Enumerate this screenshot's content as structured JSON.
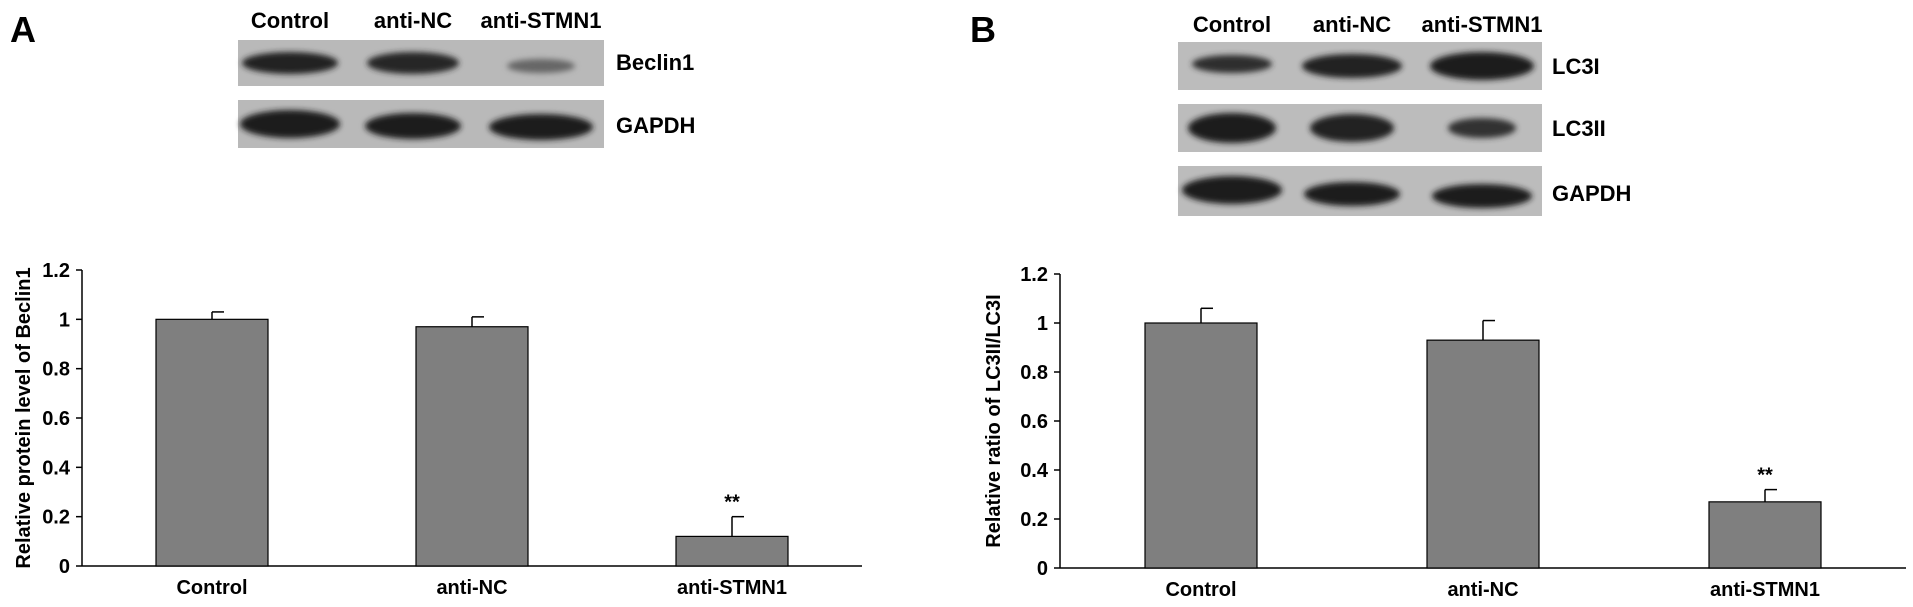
{
  "figure": {
    "panels": [
      {
        "letter": "A",
        "blot": {
          "lanes": [
            "Control",
            "anti-NC",
            "anti-STMN1"
          ],
          "bands": [
            {
              "name": "Beclin1",
              "intensity": [
                1.0,
                0.95,
                0.45
              ]
            },
            {
              "name": "GAPDH",
              "intensity": [
                1.0,
                1.0,
                1.0
              ]
            }
          ]
        }
      },
      {
        "letter": "B",
        "blot": {
          "lanes": [
            "Control",
            "anti-NC",
            "anti-STMN1"
          ],
          "bands": [
            {
              "name": "LC3I",
              "intensity": [
                0.8,
                1.0,
                1.05
              ]
            },
            {
              "name": "LC3II",
              "intensity": [
                1.0,
                1.0,
                0.65
              ]
            },
            {
              "name": "GAPDH",
              "intensity": [
                1.0,
                1.0,
                1.0
              ]
            }
          ]
        }
      }
    ]
  },
  "chart_data": [
    {
      "type": "bar",
      "categories": [
        "Control",
        "anti-NC",
        "anti-STMN1"
      ],
      "values": [
        1.0,
        0.97,
        0.12
      ],
      "errors": [
        0.03,
        0.04,
        0.08
      ],
      "significance": [
        "",
        "",
        "**"
      ],
      "title": "",
      "xlabel": "",
      "ylabel": "Relative protein level of Beclin1",
      "ylim": [
        0,
        1.2
      ],
      "yticks": [
        0,
        0.2,
        0.4,
        0.6,
        0.8,
        1,
        1.2
      ],
      "ytick_labels": [
        "0",
        "0.2",
        "0.4",
        "0.6",
        "0.8",
        "1",
        "1.2"
      ],
      "grid": false,
      "bar_color": "#7f7f7f"
    },
    {
      "type": "bar",
      "categories": [
        "Control",
        "anti-NC",
        "anti-STMN1"
      ],
      "values": [
        1.0,
        0.93,
        0.27
      ],
      "errors": [
        0.06,
        0.08,
        0.05
      ],
      "significance": [
        "",
        "",
        "**"
      ],
      "title": "",
      "xlabel": "",
      "ylabel": "Relative ratio of LC3II/LC3I",
      "ylim": [
        0,
        1.2
      ],
      "yticks": [
        0,
        0.2,
        0.4,
        0.6,
        0.8,
        1,
        1.2
      ],
      "ytick_labels": [
        "0",
        "0.2",
        "0.4",
        "0.6",
        "0.8",
        "1",
        "1.2"
      ],
      "grid": false,
      "bar_color": "#7f7f7f"
    }
  ]
}
